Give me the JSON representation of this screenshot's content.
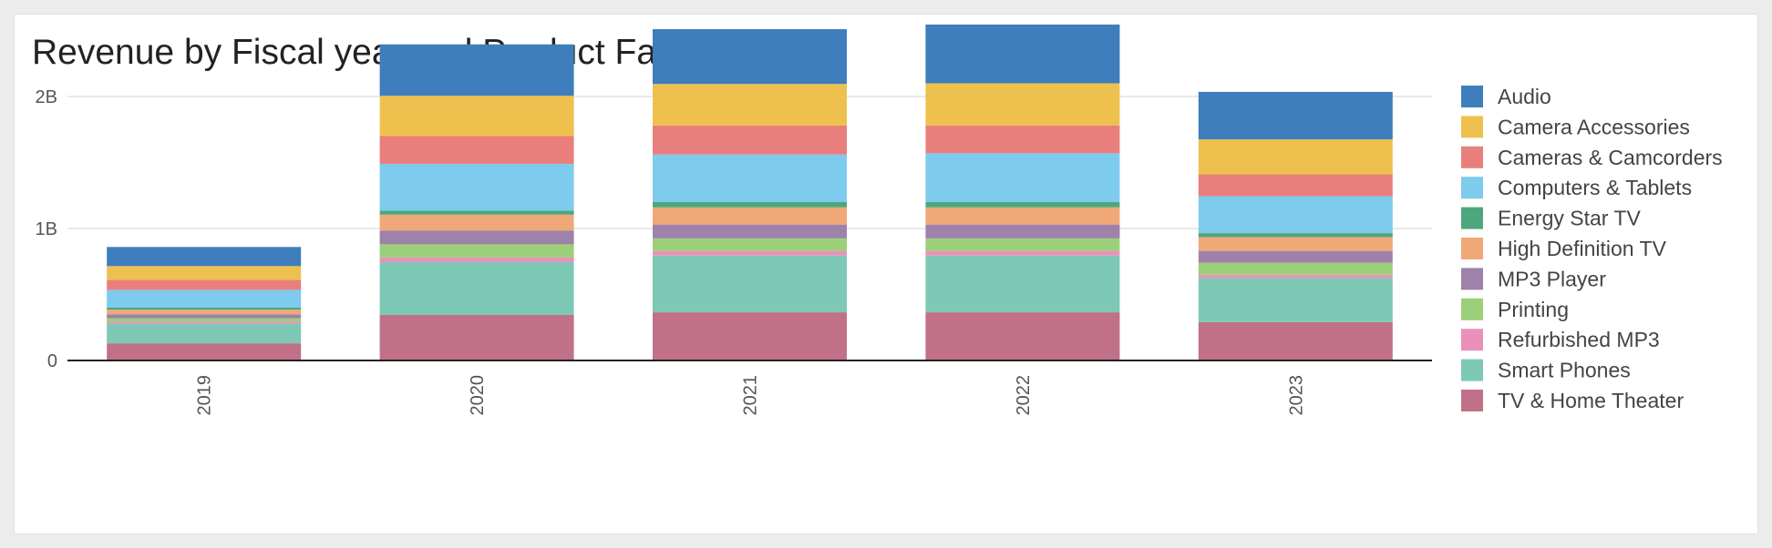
{
  "chart_data": {
    "type": "bar",
    "stacked": true,
    "title": "Revenue by Fiscal year and Product Family",
    "xlabel": "",
    "ylabel": "",
    "categories": [
      "2019",
      "2020",
      "2021",
      "2022",
      "2023"
    ],
    "y_ticks": [
      {
        "value": 0,
        "label": "0"
      },
      {
        "value": 1000000000,
        "label": "1B"
      },
      {
        "value": 2000000000,
        "label": "2B"
      }
    ],
    "ylim": [
      0,
      2600000000
    ],
    "grid": true,
    "legend_position": "right",
    "series": [
      {
        "name": "TV & Home Theater",
        "color": "#c07188",
        "values": [
          130000000,
          345000000,
          365000000,
          365000000,
          290000000
        ]
      },
      {
        "name": "Smart Phones",
        "color": "#7ec8b6",
        "values": [
          150000000,
          400000000,
          430000000,
          430000000,
          335000000
        ]
      },
      {
        "name": "Refurbished MP3",
        "color": "#e991b8",
        "values": [
          15000000,
          35000000,
          35000000,
          35000000,
          25000000
        ]
      },
      {
        "name": "Printing",
        "color": "#9ccf7a",
        "values": [
          25000000,
          100000000,
          95000000,
          95000000,
          90000000
        ]
      },
      {
        "name": "MP3 Player",
        "color": "#9e82aa",
        "values": [
          30000000,
          105000000,
          105000000,
          105000000,
          90000000
        ]
      },
      {
        "name": "High Definition TV",
        "color": "#f0a878",
        "values": [
          35000000,
          120000000,
          130000000,
          130000000,
          105000000
        ]
      },
      {
        "name": "Energy Star TV",
        "color": "#4ea77c",
        "values": [
          15000000,
          30000000,
          40000000,
          40000000,
          30000000
        ]
      },
      {
        "name": "Computers & Tablets",
        "color": "#7dcbed",
        "values": [
          135000000,
          355000000,
          360000000,
          370000000,
          280000000
        ]
      },
      {
        "name": "Cameras & Camcorders",
        "color": "#e97f7c",
        "values": [
          75000000,
          210000000,
          220000000,
          210000000,
          165000000
        ]
      },
      {
        "name": "Camera Accessories",
        "color": "#eec14e",
        "values": [
          105000000,
          305000000,
          315000000,
          320000000,
          265000000
        ]
      },
      {
        "name": "Audio",
        "color": "#3e7ebd",
        "values": [
          145000000,
          390000000,
          415000000,
          445000000,
          360000000
        ]
      }
    ]
  }
}
